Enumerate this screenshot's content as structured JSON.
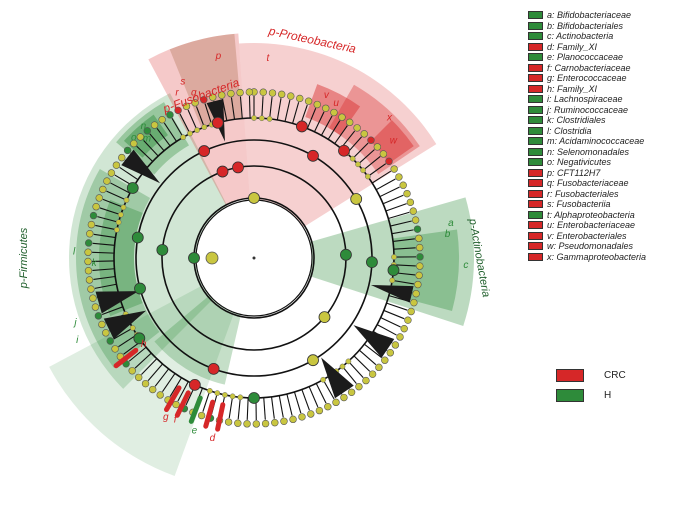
{
  "colors": {
    "crc": "#d62728",
    "h": "#2e8b3a",
    "node_neutral": "#c9c640",
    "edge": "#111111"
  },
  "phyla": [
    {
      "label": "p-Fusobacteria",
      "group": "CRC"
    },
    {
      "label": "p-Proteobacteria",
      "group": "CRC"
    },
    {
      "label": "p-Firmicutes",
      "group": "H"
    },
    {
      "label": "p-Actinobacteria",
      "group": "H"
    }
  ],
  "ring_letters": [
    "a",
    "b",
    "c",
    "d",
    "e",
    "f",
    "g",
    "h",
    "i",
    "j",
    "k",
    "l",
    "m",
    "n",
    "o",
    "p",
    "q",
    "r",
    "s",
    "t",
    "u",
    "v",
    "w",
    "x"
  ],
  "legend": [
    {
      "key": "a: Bifidobacteriaceae",
      "group": "H"
    },
    {
      "key": "b: Bifidobacteriales",
      "group": "H"
    },
    {
      "key": "c: Actinobacteria",
      "group": "H"
    },
    {
      "key": "d: Family_XI",
      "group": "CRC"
    },
    {
      "key": "e: Planococcaceae",
      "group": "H"
    },
    {
      "key": "f: Carnobacteriaceae",
      "group": "CRC"
    },
    {
      "key": "g: Enterococcaceae",
      "group": "CRC"
    },
    {
      "key": "h: Family_XI",
      "group": "CRC"
    },
    {
      "key": "i: Lachnospiraceae",
      "group": "H"
    },
    {
      "key": "j: Ruminococcaceae",
      "group": "H"
    },
    {
      "key": "k: Clostridiales",
      "group": "H"
    },
    {
      "key": "l: Clostridia",
      "group": "H"
    },
    {
      "key": "m: Acidaminococcaceae",
      "group": "H"
    },
    {
      "key": "n: Selenomonadales",
      "group": "H"
    },
    {
      "key": "o: Negativicutes",
      "group": "H"
    },
    {
      "key": "p: CFT112H7",
      "group": "CRC"
    },
    {
      "key": "q: Fusobacteriaceae",
      "group": "CRC"
    },
    {
      "key": "r: Fusobacteriales",
      "group": "CRC"
    },
    {
      "key": "s: Fusobacteriia",
      "group": "CRC"
    },
    {
      "key": "t: Alphaproteobacteria",
      "group": "H"
    },
    {
      "key": "u: Enterobacteriaceae",
      "group": "CRC"
    },
    {
      "key": "v: Enterobacteriales",
      "group": "CRC"
    },
    {
      "key": "w: Pseudomonadales",
      "group": "CRC"
    },
    {
      "key": "x: Gammaproteobacteria",
      "group": "CRC"
    }
  ],
  "groups": [
    {
      "label": "CRC",
      "group": "CRC"
    },
    {
      "label": "H",
      "group": "H"
    }
  ]
}
